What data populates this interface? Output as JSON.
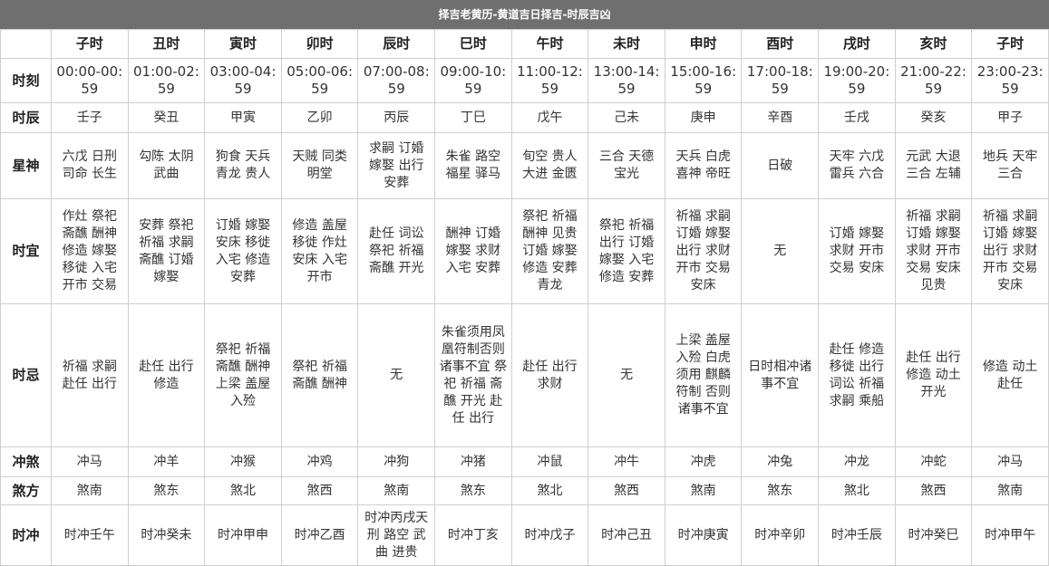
{
  "title": "择吉老黄历-黄道吉日择吉-时辰吉凶",
  "columns": [
    "子时",
    "丑时",
    "寅时",
    "卯时",
    "辰时",
    "巳时",
    "午时",
    "未时",
    "申时",
    "酉时",
    "戌时",
    "亥时",
    "子时"
  ],
  "rows": [
    {
      "key": "r-time",
      "label": "时刻",
      "cells": [
        "00:00-00:59",
        "01:00-02:59",
        "03:00-04:59",
        "05:00-06:59",
        "07:00-08:59",
        "09:00-10:59",
        "11:00-12:59",
        "13:00-14:59",
        "15:00-16:59",
        "17:00-18:59",
        "19:00-20:59",
        "21:00-22:59",
        "23:00-23:59"
      ]
    },
    {
      "key": "r-shichen",
      "label": "时辰",
      "cells": [
        "壬子",
        "癸丑",
        "甲寅",
        "乙卯",
        "丙辰",
        "丁巳",
        "戊午",
        "己未",
        "庚申",
        "辛酉",
        "壬戌",
        "癸亥",
        "甲子"
      ]
    },
    {
      "key": "r-xingshen",
      "label": "星神",
      "cells": [
        "六戊 日刑 司命 长生",
        "勾陈 太阴 武曲",
        "狗食 天兵 青龙 贵人",
        "天贼 同类 明堂",
        "求嗣 订婚 嫁娶 出行 安葬",
        "朱雀 路空 福星 驿马",
        "旬空 贵人 大进 金匮",
        "三合 天德 宝光",
        "天兵 白虎 喜神 帝旺",
        "日破",
        "天牢 六戊 雷兵 六合",
        "元武 大退 三合 左辅",
        "地兵 天牢 三合"
      ]
    },
    {
      "key": "r-shiyi",
      "label": "时宜",
      "cells": [
        "作灶 祭祀 斋醮 酬神 修造 嫁娶 移徙 入宅 开市 交易",
        "安葬 祭祀 祈福 求嗣 斋醮 订婚 嫁娶",
        "订婚 嫁娶 安床 移徙 入宅 修造 安葬",
        "修造 盖屋 移徙 作灶 安床 入宅 开市",
        "赴任 词讼 祭祀 祈福 斋醮 开光",
        "酬神 订婚 嫁娶 求财 入宅 安葬",
        "祭祀 祈福 酬神 见贵 订婚 嫁娶 修造 安葬 青龙",
        "祭祀 祈福 出行 订婚 嫁娶 入宅 修造 安葬",
        "祈福 求嗣 订婚 嫁娶 出行 求财 开市 交易 安床",
        "无",
        "订婚 嫁娶 求财 开市 交易 安床",
        "祈福 求嗣 订婚 嫁娶 求财 开市 交易 安床 见贵",
        "祈福 求嗣 订婚 嫁娶 出行 求财 开市 交易 安床"
      ]
    },
    {
      "key": "r-shiji",
      "label": "时忌",
      "cells": [
        "祈福 求嗣 赴任 出行",
        "赴任 出行 修造",
        "祭祀 祈福 斋醮 酬神 上梁 盖屋 入殓",
        "祭祀 祈福 斋醮 酬神",
        "无",
        "朱雀须用凤凰符制否则 诸事不宜 祭祀 祈福 斋醮 开光 赴任 出行",
        "赴任 出行 求财",
        "无",
        "上梁 盖屋 入殓 白虎 须用 麒麟 符制 否则 诸事不宜",
        "日时相冲诸事不宜",
        "赴任 修造 移徙 出行 词讼 祈福 求嗣 乘船",
        "赴任 出行 修造 动土 开光",
        "修造 动土 赴任"
      ]
    },
    {
      "key": "r-chongsha",
      "label": "冲煞",
      "cells": [
        "冲马",
        "冲羊",
        "冲猴",
        "冲鸡",
        "冲狗",
        "冲猪",
        "冲鼠",
        "冲牛",
        "冲虎",
        "冲兔",
        "冲龙",
        "冲蛇",
        "冲马"
      ]
    },
    {
      "key": "r-shafang",
      "label": "煞方",
      "cells": [
        "煞南",
        "煞东",
        "煞北",
        "煞西",
        "煞南",
        "煞东",
        "煞北",
        "煞西",
        "煞南",
        "煞东",
        "煞北",
        "煞西",
        "煞南"
      ]
    },
    {
      "key": "r-shichong",
      "label": "时冲",
      "cells": [
        "时冲壬午",
        "时冲癸未",
        "时冲甲申",
        "时冲乙酉",
        "时冲丙戌天刑 路空 武曲 进贵",
        "时冲丁亥",
        "时冲戊子",
        "时冲己丑",
        "时冲庚寅",
        "时冲辛卯",
        "时冲壬辰",
        "时冲癸巳",
        "时冲甲午"
      ]
    }
  ]
}
